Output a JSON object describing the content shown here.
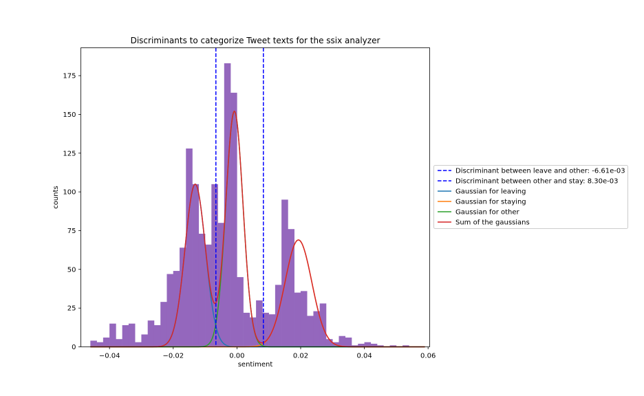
{
  "chart_data": {
    "type": "histogram",
    "title": "Discriminants to categorize Tweet texts for the ssix analyzer",
    "xlabel": "sentiment",
    "ylabel": "counts",
    "xlim": [
      -0.049,
      0.0605
    ],
    "ylim": [
      0,
      193
    ],
    "grid": false,
    "legend_position": "right",
    "x_ticks": [
      {
        "value": -0.04,
        "label": "−0.04"
      },
      {
        "value": -0.02,
        "label": "−0.02"
      },
      {
        "value": 0.0,
        "label": "0.00"
      },
      {
        "value": 0.02,
        "label": "0.02"
      },
      {
        "value": 0.04,
        "label": "0.04"
      },
      {
        "value": 0.06,
        "label": "0.06"
      }
    ],
    "y_ticks": [
      {
        "value": 0,
        "label": "0"
      },
      {
        "value": 25,
        "label": "25"
      },
      {
        "value": 50,
        "label": "50"
      },
      {
        "value": 75,
        "label": "75"
      },
      {
        "value": 100,
        "label": "100"
      },
      {
        "value": 125,
        "label": "125"
      },
      {
        "value": 150,
        "label": "150"
      },
      {
        "value": 175,
        "label": "175"
      }
    ],
    "histogram": {
      "color": "#9467bd",
      "bin_start": -0.04601,
      "bin_width": 0.002,
      "counts": [
        4,
        3,
        6,
        15,
        5,
        14,
        15,
        3,
        8,
        17,
        14,
        29,
        47,
        49,
        64,
        128,
        105,
        73,
        66,
        105,
        80,
        183,
        164,
        45,
        22,
        19,
        30,
        22,
        21,
        40,
        95,
        76,
        35,
        36,
        20,
        23,
        28,
        5,
        3,
        7,
        6,
        1,
        2,
        3,
        2,
        1,
        0,
        1,
        0,
        1
      ]
    },
    "discriminants": [
      {
        "name": "Discriminant between leave and other: -6.61e-03",
        "x": -0.00661,
        "color": "#0000ff"
      },
      {
        "name": "Discriminant between other and stay: 8.30e-03",
        "x": 0.0083,
        "color": "#0000ff"
      }
    ],
    "gaussians": [
      {
        "name": "Gaussian for leaving",
        "color": "#1f77b4",
        "amplitude": 105,
        "mean": -0.0131,
        "sigma": 0.0032
      },
      {
        "name": "Gaussian for staying",
        "color": "#ff7f0e",
        "amplitude": 69,
        "mean": 0.0193,
        "sigma": 0.0042
      },
      {
        "name": "Gaussian for other",
        "color": "#2ca02c",
        "amplitude": 152,
        "mean": -0.0008,
        "sigma": 0.0027
      }
    ],
    "sum_curve": {
      "name": "Sum of the gaussians",
      "color": "#d62728"
    },
    "curve_x_range": [
      -0.046,
      0.059
    ]
  }
}
